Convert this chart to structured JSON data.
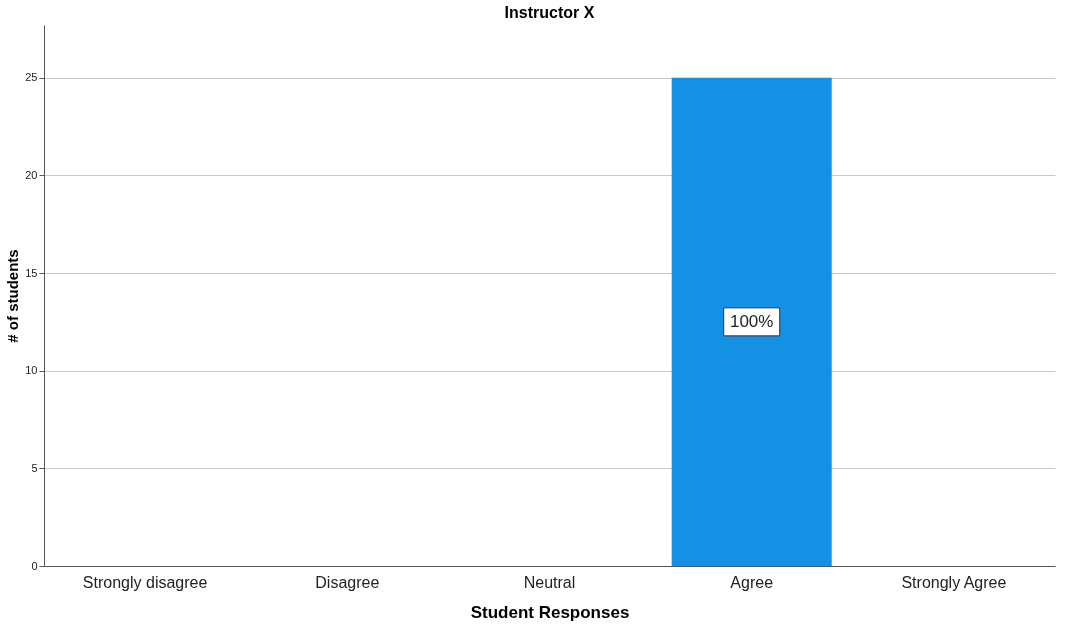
{
  "chart_data": {
    "type": "bar",
    "title": "Instructor X",
    "xlabel": "Student Responses",
    "ylabel": "# of students",
    "categories": [
      "Strongly disagree",
      "Disagree",
      "Neutral",
      "Agree",
      "Strongly Agree"
    ],
    "values": [
      0,
      0,
      0,
      25,
      0
    ],
    "annotations": [
      "100%"
    ],
    "color": "#1490e4",
    "ylim": [
      0,
      27.7
    ],
    "yticks": [
      0,
      5,
      10,
      15,
      20,
      25
    ],
    "grid": "y"
  }
}
